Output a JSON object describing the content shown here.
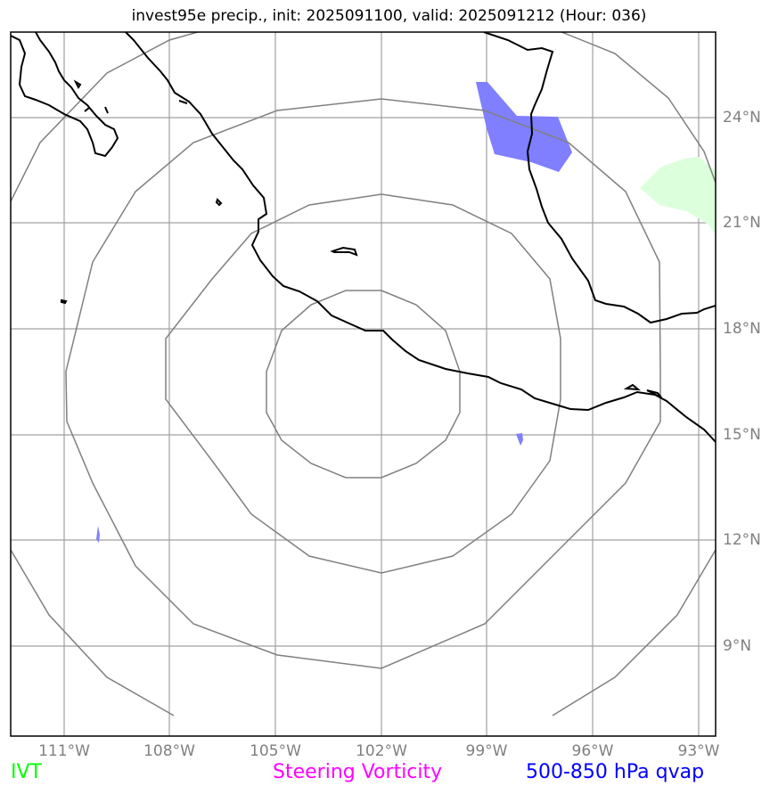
{
  "title": "invest95e precip., init: 2025091100, valid: 2025091212 (Hour: 036)",
  "lon_labels": [
    "111°W",
    "108°W",
    "105°W",
    "102°W",
    "99°W",
    "96°W",
    "93°W"
  ],
  "lat_labels": [
    "24°N",
    "21°N",
    "18°N",
    "15°N",
    "12°N",
    "9°N"
  ],
  "legend": {
    "ivt": {
      "label": "IVT",
      "color": "#00ff00"
    },
    "vorticity": {
      "label": "Steering Vorticity",
      "color": "#ff00ff"
    },
    "qvap": {
      "label": "500-850 hPa qvap",
      "color": "#0000ff"
    }
  },
  "colors": {
    "grid": "#a0a0a0",
    "range_rings": "#808080",
    "coastline": "#000000",
    "qvap_fill": "#7f7fff",
    "ivt_fill": "#dcffdc"
  },
  "center": {
    "lon": -102,
    "lat": 16.5
  },
  "ring_radii_deg": [
    3,
    6,
    9,
    12
  ]
}
